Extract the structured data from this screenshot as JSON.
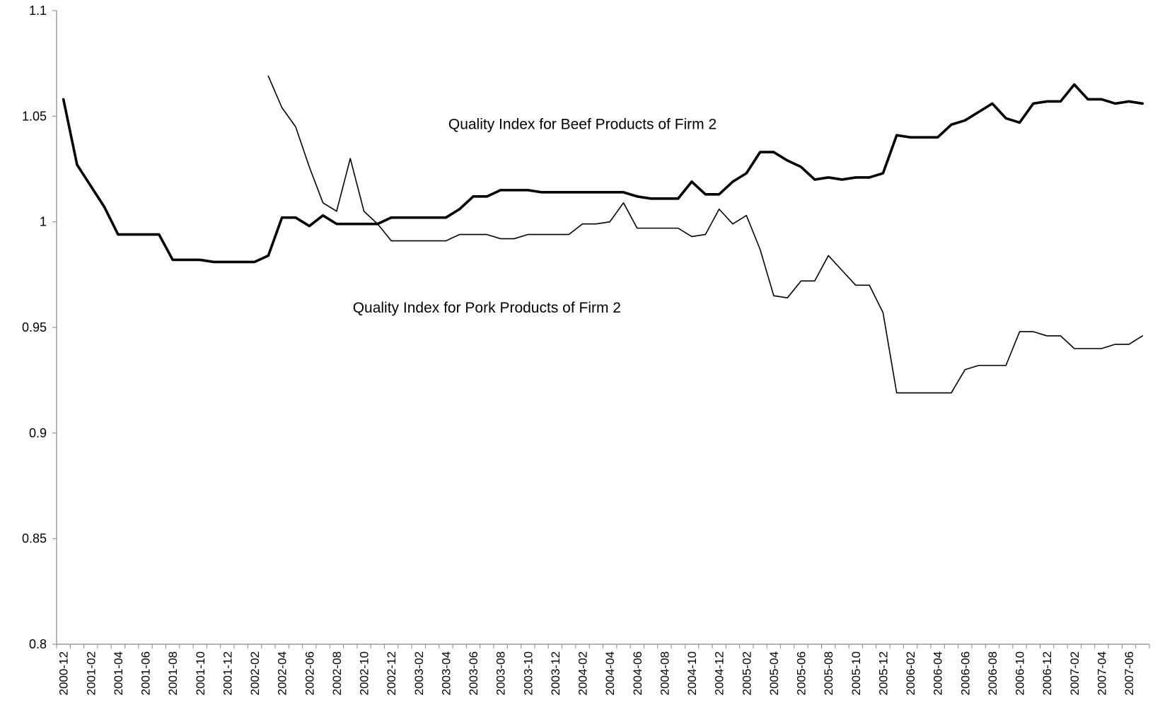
{
  "chart_data": {
    "type": "line",
    "title": "",
    "xlabel": "",
    "ylabel": "",
    "ylim": [
      0.8,
      1.1
    ],
    "y_ticks": [
      0.8,
      0.85,
      0.9,
      0.95,
      1.0,
      1.05,
      1.1
    ],
    "y_tick_labels": [
      "0.8",
      "0.85",
      "0.9",
      "0.95",
      "1",
      "1.05",
      "1.1"
    ],
    "grid": false,
    "legend": "none",
    "x_tick_labels": [
      "2000-12",
      "2001-02",
      "2001-04",
      "2001-06",
      "2001-08",
      "2001-10",
      "2001-12",
      "2002-02",
      "2002-04",
      "2002-06",
      "2002-08",
      "2002-10",
      "2002-12",
      "2003-02",
      "2003-04",
      "2003-06",
      "2003-08",
      "2003-10",
      "2003-12",
      "2004-02",
      "2004-04",
      "2004-06",
      "2004-08",
      "2004-10",
      "2004-12",
      "2005-02",
      "2005-04",
      "2005-06",
      "2005-08",
      "2005-10",
      "2005-12",
      "2006-02",
      "2006-04",
      "2006-06",
      "2006-08",
      "2006-10",
      "2006-12",
      "2007-02",
      "2007-04",
      "2007-06"
    ],
    "x": [
      "2000-12",
      "2001-01",
      "2001-02",
      "2001-03",
      "2001-04",
      "2001-05",
      "2001-06",
      "2001-07",
      "2001-08",
      "2001-09",
      "2001-10",
      "2001-11",
      "2001-12",
      "2002-01",
      "2002-02",
      "2002-03",
      "2002-04",
      "2002-05",
      "2002-06",
      "2002-07",
      "2002-08",
      "2002-09",
      "2002-10",
      "2002-11",
      "2002-12",
      "2003-01",
      "2003-02",
      "2003-03",
      "2003-04",
      "2003-05",
      "2003-06",
      "2003-07",
      "2003-08",
      "2003-09",
      "2003-10",
      "2003-11",
      "2003-12",
      "2004-01",
      "2004-02",
      "2004-03",
      "2004-04",
      "2004-05",
      "2004-06",
      "2004-07",
      "2004-08",
      "2004-09",
      "2004-10",
      "2004-11",
      "2004-12",
      "2005-01",
      "2005-02",
      "2005-03",
      "2005-04",
      "2005-05",
      "2005-06",
      "2005-07",
      "2005-08",
      "2005-09",
      "2005-10",
      "2005-11",
      "2005-12",
      "2006-01",
      "2006-02",
      "2006-03",
      "2006-04",
      "2006-05",
      "2006-06",
      "2006-07",
      "2006-08",
      "2006-09",
      "2006-10",
      "2006-11",
      "2006-12",
      "2007-01",
      "2007-02",
      "2007-03",
      "2007-04",
      "2007-05",
      "2007-06",
      "2007-07"
    ],
    "series": [
      {
        "name": "Quality Index for Beef Products of Firm 2",
        "style": "thick",
        "values": [
          1.058,
          1.027,
          1.017,
          1.007,
          0.994,
          0.994,
          0.994,
          0.994,
          0.982,
          0.982,
          0.982,
          0.981,
          0.981,
          0.981,
          0.981,
          0.984,
          1.002,
          1.002,
          0.998,
          1.003,
          0.999,
          0.999,
          0.999,
          0.999,
          1.002,
          1.002,
          1.002,
          1.002,
          1.002,
          1.006,
          1.012,
          1.012,
          1.015,
          1.015,
          1.015,
          1.014,
          1.014,
          1.014,
          1.014,
          1.014,
          1.014,
          1.014,
          1.012,
          1.011,
          1.011,
          1.011,
          1.019,
          1.013,
          1.013,
          1.019,
          1.023,
          1.033,
          1.033,
          1.029,
          1.026,
          1.02,
          1.021,
          1.02,
          1.021,
          1.021,
          1.023,
          1.041,
          1.04,
          1.04,
          1.04,
          1.046,
          1.048,
          1.052,
          1.056,
          1.049,
          1.047,
          1.056,
          1.057,
          1.057,
          1.065,
          1.058,
          1.058,
          1.056,
          1.057,
          1.056
        ]
      },
      {
        "name": "Quality Index for Pork Products of Firm 2",
        "style": "thin",
        "values": [
          null,
          null,
          null,
          null,
          null,
          null,
          null,
          null,
          null,
          null,
          null,
          null,
          null,
          null,
          null,
          1.069,
          1.054,
          1.045,
          1.026,
          1.009,
          1.005,
          1.03,
          1.005,
          0.999,
          0.991,
          0.991,
          0.991,
          0.991,
          0.991,
          0.994,
          0.994,
          0.994,
          0.992,
          0.992,
          0.994,
          0.994,
          0.994,
          0.994,
          0.999,
          0.999,
          1.0,
          1.009,
          0.997,
          0.997,
          0.997,
          0.997,
          0.993,
          0.994,
          1.006,
          0.999,
          1.003,
          0.987,
          0.965,
          0.964,
          0.972,
          0.972,
          0.984,
          0.977,
          0.97,
          0.97,
          0.957,
          0.919,
          0.919,
          0.919,
          0.919,
          0.919,
          0.93,
          0.932,
          0.932,
          0.932,
          0.948,
          0.948,
          0.946,
          0.946,
          0.94,
          0.94,
          0.94,
          0.942,
          0.942,
          0.946
        ]
      }
    ],
    "annotations": [
      {
        "text": "Quality Index for Beef Products of Firm 2",
        "x": "2004-02",
        "y": 1.044
      },
      {
        "text": "Quality Index for Pork Products of Firm 2",
        "x": "2003-07",
        "y": 0.957
      }
    ]
  }
}
